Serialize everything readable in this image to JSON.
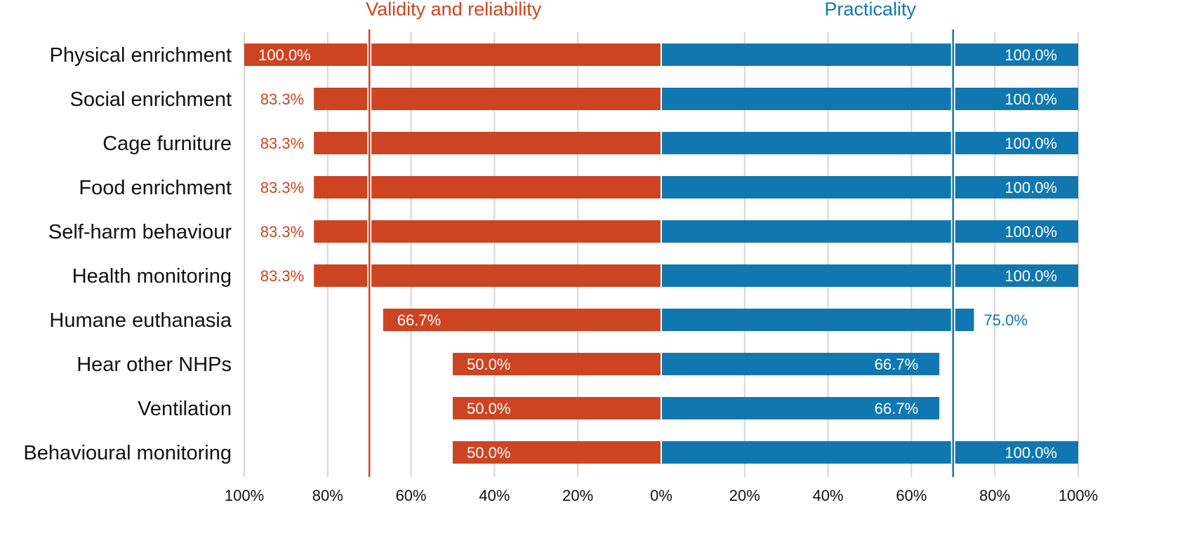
{
  "chart_data": {
    "type": "bar",
    "orientation": "horizontal-diverging",
    "categories": [
      "Physical enrichment",
      "Social enrichment",
      "Cage furniture",
      "Food enrichment",
      "Self-harm behaviour",
      "Health monitoring",
      "Humane euthanasia",
      "Hear other NHPs",
      "Ventilation",
      "Behavioural monitoring"
    ],
    "series": [
      {
        "name": "Validity and reliability",
        "side": "left",
        "color": "#cc4422",
        "values": [
          100.0,
          83.3,
          83.3,
          83.3,
          83.3,
          83.3,
          66.7,
          50.0,
          50.0,
          50.0
        ],
        "labels": [
          "100.0%",
          "83.3%",
          "83.3%",
          "83.3%",
          "83.3%",
          "83.3%",
          "66.7%",
          "50.0%",
          "50.0%",
          "50.0%"
        ]
      },
      {
        "name": "Practicality",
        "side": "right",
        "color": "#1177b0",
        "values": [
          100.0,
          100.0,
          100.0,
          100.0,
          100.0,
          100.0,
          75.0,
          66.7,
          66.7,
          100.0
        ],
        "labels": [
          "100.0%",
          "100.0%",
          "100.0%",
          "100.0%",
          "100.0%",
          "100.0%",
          "75.0%",
          "66.7%",
          "66.7%",
          "100.0%"
        ]
      }
    ],
    "threshold": 70,
    "left_ticks": [
      "100%",
      "80%",
      "60%",
      "40%",
      "20%"
    ],
    "right_ticks": [
      "0%",
      "20%",
      "40%",
      "60%",
      "80%",
      "100%"
    ],
    "xlim": [
      0,
      100
    ],
    "grid": true,
    "title": "",
    "xlabel": "",
    "ylabel": ""
  }
}
